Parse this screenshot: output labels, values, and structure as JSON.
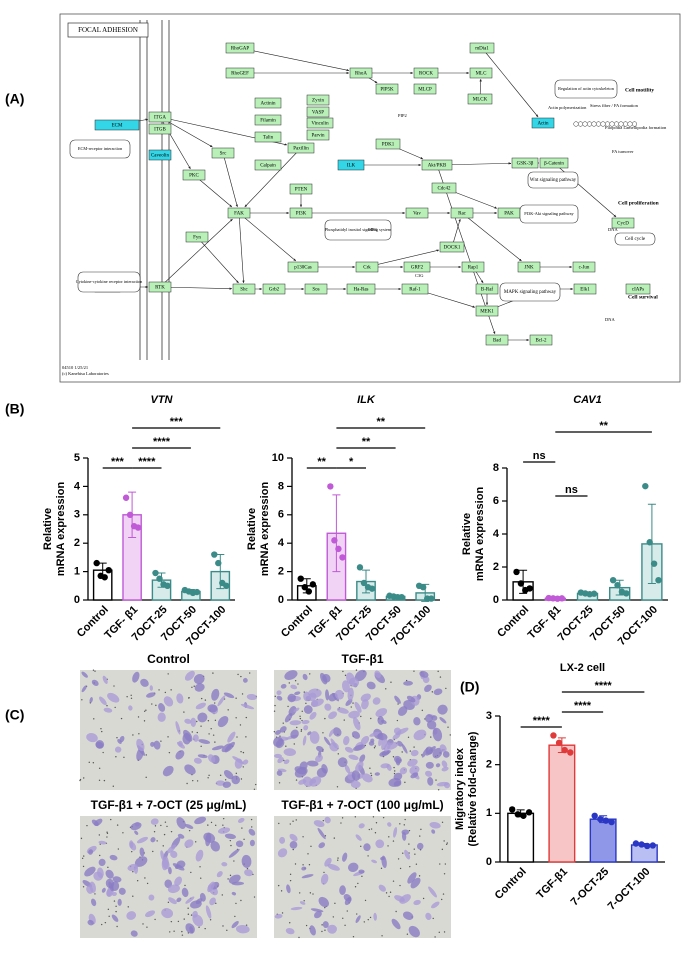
{
  "panel_labels": [
    "(A)",
    "(B)",
    "(C)",
    "(D)"
  ],
  "pathway": {
    "title": "FOCAL ADHESION",
    "footer": [
      "04510 1/25/21",
      "(c) Kanehisa Laboratories"
    ],
    "nodes": [
      "ECM",
      "ITGA",
      "ITGB",
      "Caveolin",
      "RTK",
      "GF",
      "RhoGAP",
      "RhoGEF",
      "Actinin",
      "Filamin",
      "Talin",
      "Calpain",
      "Zyxin",
      "VASP",
      "Vinculin",
      "Parvin",
      "Paxillin",
      "ILK",
      "Src",
      "PKC",
      "FAK",
      "Fyn",
      "PI3K",
      "PTEN",
      "p130Cas",
      "RhoA",
      "PIP5K",
      "ROCK",
      "MLCP",
      "MLC",
      "MLCK",
      "mDia1",
      "Actin",
      "PDK1",
      "Akt/PKB",
      "GSK-3β",
      "β-Catenin",
      "Cdc42",
      "Vav",
      "Rac",
      "PAK",
      "DOCK1",
      "Crk",
      "GRF2",
      "Rap1",
      "JNK",
      "c-Jun",
      "B-Raf",
      "CycD",
      "Shc",
      "Grb2",
      "Sos",
      "Ha-Ras",
      "Raf-1",
      "MEK1",
      "ERK1/2",
      "Elk1",
      "cIAPs",
      "Bad",
      "Bcl-2"
    ],
    "notes": [
      "ECM-receptor interaction",
      "Cytokine-cytokine receptor interaction",
      "Regulation of actin cytoskeleton",
      "Phosphatidyl inositol signaling system",
      "Wnt signaling pathway",
      "PI3K-Akt signaling pathway",
      "MAPK signaling pathway",
      "Cell cycle"
    ],
    "outputs": [
      "Cell motility",
      "Cell proliferation",
      "Cell survival"
    ],
    "captions": [
      "Stress fiber / FA formation",
      "Actin polymerization",
      "Filopodia Lamellipodia formation",
      "FA turnover",
      "DNA",
      "DNA",
      "PIP2",
      "PIP3",
      "C3G"
    ]
  },
  "chart_data": [
    {
      "type": "bar",
      "title": "VTN",
      "italic": true,
      "ylabel": [
        "Relative",
        "mRNA expression"
      ],
      "categories": [
        "Control",
        "TGF- β1",
        "7OCT-25",
        "7OCT-50",
        "7OCT-100"
      ],
      "values": [
        1.05,
        3.0,
        0.7,
        0.3,
        1.0
      ],
      "errors": [
        0.25,
        0.8,
        0.25,
        0.07,
        0.6
      ],
      "points": [
        [
          1.3,
          0.85,
          0.8,
          1.05
        ],
        [
          3.6,
          3.0,
          2.6,
          2.55
        ],
        [
          0.95,
          0.75,
          0.55,
          0.5
        ],
        [
          0.35,
          0.3,
          0.25,
          0.28
        ],
        [
          1.6,
          1.3,
          0.6,
          0.5
        ]
      ],
      "colors": [
        "#000000",
        "#c05ad6",
        "#3b8b88",
        "#3b8b88",
        "#3b8b88"
      ],
      "fills": [
        "#ffffff",
        "#f1d3f6",
        "#d6ebea",
        "#d6ebea",
        "#d6ebea"
      ],
      "ylim": [
        0,
        5
      ],
      "yticks": [
        0,
        1,
        2,
        3,
        4,
        5
      ],
      "significance": [
        {
          "pair": [
            0,
            1
          ],
          "label": "***"
        },
        {
          "pair": [
            1,
            2
          ],
          "label": "****"
        },
        {
          "pair": [
            1,
            3
          ],
          "label": "****"
        },
        {
          "pair": [
            1,
            4
          ],
          "label": "***"
        }
      ]
    },
    {
      "type": "bar",
      "title": "ILK",
      "italic": true,
      "ylabel": [
        "Relative",
        "mRNA expression"
      ],
      "categories": [
        "Control",
        "TGF- β1",
        "7OCT-25",
        "7OCT-50",
        "7OCT-100"
      ],
      "values": [
        1.0,
        4.7,
        1.3,
        0.25,
        0.5
      ],
      "errors": [
        0.5,
        2.7,
        0.8,
        0.1,
        0.6
      ],
      "points": [
        [
          1.5,
          0.9,
          0.6,
          1.1
        ],
        [
          8.0,
          4.2,
          3.6,
          3.0
        ],
        [
          2.3,
          1.2,
          0.9,
          0.8
        ],
        [
          0.3,
          0.25,
          0.2,
          0.2
        ],
        [
          1.0,
          0.9,
          0.1,
          0.1
        ]
      ],
      "colors": [
        "#000000",
        "#c05ad6",
        "#3b8b88",
        "#3b8b88",
        "#3b8b88"
      ],
      "fills": [
        "#ffffff",
        "#f1d3f6",
        "#d6ebea",
        "#d6ebea",
        "#d6ebea"
      ],
      "ylim": [
        0,
        10
      ],
      "yticks": [
        0,
        2,
        4,
        6,
        8,
        10
      ],
      "significance": [
        {
          "pair": [
            0,
            1
          ],
          "label": "**"
        },
        {
          "pair": [
            1,
            2
          ],
          "label": "*"
        },
        {
          "pair": [
            1,
            3
          ],
          "label": "**"
        },
        {
          "pair": [
            1,
            4
          ],
          "label": "**"
        }
      ]
    },
    {
      "type": "bar",
      "title": "CAV1",
      "italic": true,
      "ylabel": [
        "Relative",
        "mRNA expression"
      ],
      "categories": [
        "Control",
        "TGF- β1",
        "7OCT-25",
        "7OCT-50",
        "7OCT-100"
      ],
      "values": [
        1.1,
        0.1,
        0.4,
        0.75,
        3.4
      ],
      "errors": [
        0.7,
        0.05,
        0.05,
        0.45,
        2.4
      ],
      "points": [
        [
          1.7,
          1.0,
          0.6,
          0.7
        ],
        [
          0.12,
          0.1,
          0.08,
          0.1
        ],
        [
          0.45,
          0.4,
          0.35,
          0.38
        ],
        [
          1.2,
          0.9,
          0.5,
          0.4
        ],
        [
          6.9,
          3.5,
          2.2,
          1.2
        ]
      ],
      "colors": [
        "#000000",
        "#c05ad6",
        "#3b8b88",
        "#3b8b88",
        "#3b8b88"
      ],
      "fills": [
        "#ffffff",
        "#f1d3f6",
        "#d6ebea",
        "#d6ebea",
        "#d6ebea"
      ],
      "ylim": [
        0,
        8
      ],
      "yticks": [
        0,
        2,
        4,
        6,
        8
      ],
      "significance": [
        {
          "pair": [
            0,
            1
          ],
          "label": "ns"
        },
        {
          "pair": [
            1,
            2
          ],
          "label": "ns"
        },
        {
          "pair": [
            1,
            4
          ],
          "label": "**"
        }
      ]
    },
    {
      "type": "bar",
      "title": "LX-2 cell",
      "italic": false,
      "ylabel": [
        "Migratory index",
        "(Relative fold-change)"
      ],
      "categories": [
        "Control",
        "TGF-β1",
        "7-OCT-25",
        "7-OCT-100"
      ],
      "values": [
        1.0,
        2.4,
        0.88,
        0.35
      ],
      "errors": [
        0.07,
        0.15,
        0.07,
        0.03
      ],
      "points": [
        [
          1.08,
          0.98,
          0.95,
          1.02
        ],
        [
          2.6,
          2.45,
          2.3,
          2.25
        ],
        [
          0.95,
          0.88,
          0.85,
          0.82
        ],
        [
          0.38,
          0.36,
          0.33,
          0.34
        ]
      ],
      "colors": [
        "#000000",
        "#e03a3a",
        "#2a37c4",
        "#2a37c4"
      ],
      "fills": [
        "#ffffff",
        "#f7c5c5",
        "#8f97e8",
        "#b9bff2"
      ],
      "ylim": [
        0,
        3
      ],
      "yticks": [
        0,
        1,
        2,
        3
      ],
      "significance": [
        {
          "pair": [
            0,
            1
          ],
          "label": "****"
        },
        {
          "pair": [
            1,
            2
          ],
          "label": "****"
        },
        {
          "pair": [
            1,
            3
          ],
          "label": "****"
        }
      ]
    }
  ],
  "micrographs": {
    "titles": [
      "Control",
      "TGF-β1",
      "TGF-β1 + 7-OCT (25 μg/mL)",
      "TGF-β1 + 7-OCT (100 μg/mL)"
    ]
  }
}
